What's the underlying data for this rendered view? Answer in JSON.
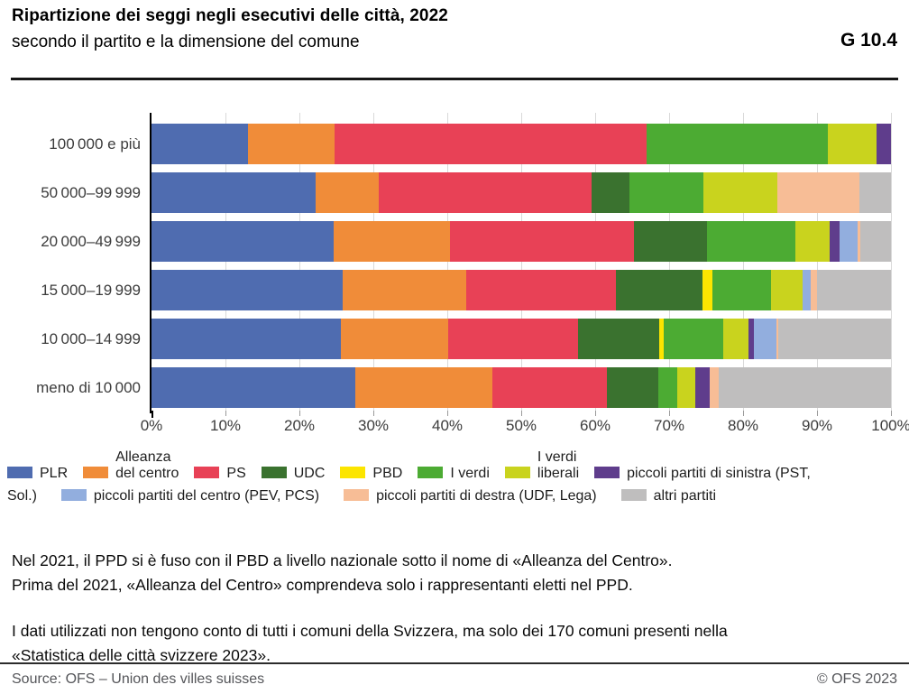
{
  "header": {
    "title": "Ripartizione dei seggi negli esecutivi delle città, 2022",
    "subtitle": "secondo il partito e la dimensione del comune",
    "figure_id": "G 10.4"
  },
  "chart_data": {
    "type": "bar",
    "orientation": "horizontal",
    "stacked": true,
    "unit": "%",
    "xlim": [
      0,
      100
    ],
    "grid": "vertical",
    "tick_labels": [
      "0%",
      "10%",
      "20%",
      "30%",
      "40%",
      "50%",
      "60%",
      "70%",
      "80%",
      "90%",
      "100%"
    ],
    "categories": [
      "100 000  e più",
      "50 000–99 999",
      "20 000–49 999",
      "15 000–19 999",
      "10 000–14 999",
      "meno di 10 000"
    ],
    "series": [
      {
        "name": "PLR",
        "color": "#4F6CB0",
        "values": [
          13.1,
          22.2,
          24.6,
          25.8,
          25.6,
          27.6
        ]
      },
      {
        "name": "Alleanza del centro",
        "color": "#F08C39",
        "values": [
          11.6,
          8.5,
          15.8,
          16.8,
          14.5,
          18.5
        ]
      },
      {
        "name": "PS",
        "color": "#E84156",
        "values": [
          42.2,
          28.8,
          24.8,
          20.2,
          17.6,
          15.5
        ]
      },
      {
        "name": "UDC",
        "color": "#3A722F",
        "values": [
          0.0,
          5.1,
          9.9,
          11.7,
          11.0,
          7.0
        ]
      },
      {
        "name": "PBD",
        "color": "#FCE500",
        "values": [
          0.0,
          0.0,
          0.0,
          1.3,
          0.6,
          0.0
        ]
      },
      {
        "name": "I verdi",
        "color": "#4CAB33",
        "values": [
          24.6,
          10.0,
          12.0,
          8.0,
          8.0,
          2.5
        ]
      },
      {
        "name": "I verdi liberali",
        "color": "#C9D31E",
        "values": [
          6.6,
          10.0,
          4.6,
          4.2,
          3.4,
          2.4
        ]
      },
      {
        "name": "piccoli partiti di sinistra (PST, Sol.)",
        "color": "#5F3D8C",
        "values": [
          1.9,
          0.0,
          1.4,
          0.0,
          0.8,
          2.0
        ]
      },
      {
        "name": "piccoli partiti del centro (PEV, PCS)",
        "color": "#92AEDE",
        "values": [
          0.0,
          0.0,
          2.4,
          1.2,
          3.0,
          0.0
        ]
      },
      {
        "name": "piccoli partiti di destra (UDF, Lega)",
        "color": "#F7BD96",
        "values": [
          0.0,
          11.1,
          0.4,
          0.8,
          0.3,
          1.2
        ]
      },
      {
        "name": "altri partiti",
        "color": "#BFBEBE",
        "values": [
          0.0,
          4.3,
          4.1,
          10.0,
          15.2,
          23.3
        ]
      }
    ]
  },
  "legend": {
    "rows": [
      {
        "items": [
          {
            "color": "#4F6CB0",
            "label": "PLR"
          },
          {
            "color": "#F08C39",
            "label": "Alleanza\ndel centro"
          },
          {
            "color": "#E84156",
            "label": "PS"
          },
          {
            "color": "#3A722F",
            "label": "UDC"
          },
          {
            "color": "#FCE500",
            "label": "PBD"
          },
          {
            "color": "#4CAB33",
            "label": "I verdi"
          },
          {
            "color": "#C9D31E",
            "label": "I verdi\nliberali"
          },
          {
            "color": "#5F3D8C",
            "label": "piccoli partiti di sinistra (PST,"
          }
        ]
      },
      {
        "items": [
          {
            "label": "Sol.)"
          },
          {
            "color": "#92AEDE",
            "label": "piccoli partiti del centro (PEV, PCS)"
          },
          {
            "color": "#F7BD96",
            "label": "piccoli partiti di destra (UDF, Lega)"
          },
          {
            "color": "#BFBEBE",
            "label": "altri partiti"
          }
        ]
      }
    ]
  },
  "notes": [
    "Nel 2021, il PPD si è fuso con il PBD a livello nazionale sotto il nome di «Alleanza del Centro».\nPrima del 2021, «Alleanza del Centro» comprendeva solo i rappresentanti eletti nel PPD.",
    "I dati utilizzati non tengono conto di tutti i comuni della Svizzera, ma solo dei 170 comuni presenti nella\n«Statistica delle città svizzere 2023»."
  ],
  "footer": {
    "source": "Source: OFS – Union des villes suisses",
    "copyright": "© OFS 2023"
  }
}
